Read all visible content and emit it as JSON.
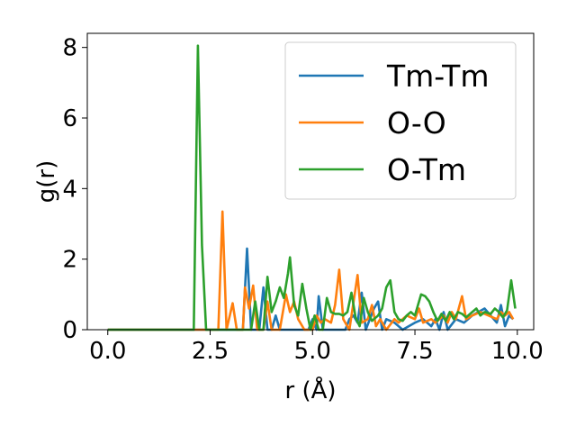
{
  "chart_data": {
    "type": "line",
    "title": "",
    "xlabel": "r (Å)",
    "ylabel": "g(r)",
    "xlim": [
      -0.5,
      10.4
    ],
    "ylim": [
      0,
      8.4
    ],
    "xticks": [
      0.0,
      2.5,
      5.0,
      7.5,
      10.0
    ],
    "xtick_labels": [
      "0.0",
      "2.5",
      "5.0",
      "7.5",
      "10.0"
    ],
    "yticks": [
      0,
      2,
      4,
      6,
      8
    ],
    "ytick_labels": [
      "0",
      "2",
      "4",
      "6",
      "8"
    ],
    "grid": false,
    "legend_position": "upper right",
    "series": [
      {
        "name": "Tm-Tm",
        "color": "#1f77b4",
        "points": [
          [
            0,
            0
          ],
          [
            3.3,
            0
          ],
          [
            3.4,
            2.3
          ],
          [
            3.5,
            0
          ],
          [
            3.7,
            0
          ],
          [
            3.8,
            1.2
          ],
          [
            3.9,
            0
          ],
          [
            4.0,
            0
          ],
          [
            4.1,
            0.4
          ],
          [
            4.2,
            0
          ],
          [
            4.9,
            0
          ],
          [
            5.0,
            0.3
          ],
          [
            5.1,
            0
          ],
          [
            5.15,
            0.95
          ],
          [
            5.25,
            0
          ],
          [
            5.8,
            0
          ],
          [
            5.9,
            0.3
          ],
          [
            6.0,
            0.4
          ],
          [
            6.1,
            0.2
          ],
          [
            6.2,
            1.05
          ],
          [
            6.3,
            0
          ],
          [
            6.5,
            0.6
          ],
          [
            6.6,
            0.8
          ],
          [
            6.7,
            0
          ],
          [
            6.8,
            0.3
          ],
          [
            7.0,
            0.2
          ],
          [
            7.2,
            0
          ],
          [
            7.5,
            0.2
          ],
          [
            7.7,
            0.3
          ],
          [
            7.9,
            0.1
          ],
          [
            8.0,
            0.3
          ],
          [
            8.1,
            0
          ],
          [
            8.2,
            0.5
          ],
          [
            8.3,
            0
          ],
          [
            8.5,
            0.3
          ],
          [
            8.7,
            0.2
          ],
          [
            8.9,
            0.4
          ],
          [
            9.2,
            0.6
          ],
          [
            9.5,
            0.2
          ],
          [
            9.6,
            0.7
          ],
          [
            9.7,
            0.1
          ],
          [
            9.8,
            0.4
          ],
          [
            9.9,
            0.3
          ]
        ]
      },
      {
        "name": "O-O",
        "color": "#ff7f0e",
        "points": [
          [
            0,
            0
          ],
          [
            2.7,
            0
          ],
          [
            2.8,
            3.35
          ],
          [
            2.9,
            0
          ],
          [
            3.05,
            0.75
          ],
          [
            3.15,
            0
          ],
          [
            3.3,
            0
          ],
          [
            3.35,
            1.2
          ],
          [
            3.45,
            0.6
          ],
          [
            3.55,
            1.25
          ],
          [
            3.65,
            0
          ],
          [
            3.8,
            0
          ],
          [
            3.9,
            0.8
          ],
          [
            4.0,
            0
          ],
          [
            4.2,
            0
          ],
          [
            4.35,
            1.0
          ],
          [
            4.45,
            0.5
          ],
          [
            4.55,
            0.8
          ],
          [
            4.65,
            0.3
          ],
          [
            4.8,
            0
          ],
          [
            5.0,
            0
          ],
          [
            5.1,
            0.4
          ],
          [
            5.2,
            0.2
          ],
          [
            5.3,
            0.3
          ],
          [
            5.45,
            0.2
          ],
          [
            5.55,
            0.7
          ],
          [
            5.65,
            1.7
          ],
          [
            5.75,
            0.3
          ],
          [
            5.9,
            0
          ],
          [
            6.1,
            1.55
          ],
          [
            6.2,
            0.2
          ],
          [
            6.35,
            0.3
          ],
          [
            6.45,
            0.7
          ],
          [
            6.55,
            0.1
          ],
          [
            6.65,
            0.3
          ],
          [
            6.8,
            0
          ],
          [
            7.0,
            0.3
          ],
          [
            7.1,
            0.2
          ],
          [
            7.3,
            0.4
          ],
          [
            7.5,
            0.3
          ],
          [
            7.6,
            0.6
          ],
          [
            7.7,
            0.2
          ],
          [
            7.9,
            0.3
          ],
          [
            8.0,
            0.2
          ],
          [
            8.2,
            0.4
          ],
          [
            8.3,
            0.2
          ],
          [
            8.4,
            0.5
          ],
          [
            8.5,
            0.3
          ],
          [
            8.65,
            0.95
          ],
          [
            8.75,
            0.3
          ],
          [
            8.9,
            0.4
          ],
          [
            9.1,
            0.5
          ],
          [
            9.3,
            0.4
          ],
          [
            9.5,
            0.3
          ],
          [
            9.6,
            0.5
          ],
          [
            9.7,
            0.4
          ],
          [
            9.8,
            0.5
          ],
          [
            9.9,
            0.3
          ]
        ]
      },
      {
        "name": "O-Tm",
        "color": "#2ca02c",
        "points": [
          [
            0,
            0
          ],
          [
            2.1,
            0
          ],
          [
            2.2,
            8.05
          ],
          [
            2.3,
            2.4
          ],
          [
            2.4,
            0
          ],
          [
            3.5,
            0
          ],
          [
            3.6,
            0.8
          ],
          [
            3.7,
            0
          ],
          [
            3.8,
            0
          ],
          [
            3.9,
            1.5
          ],
          [
            4.0,
            0.5
          ],
          [
            4.1,
            0.8
          ],
          [
            4.2,
            1.2
          ],
          [
            4.3,
            0.9
          ],
          [
            4.4,
            1.6
          ],
          [
            4.45,
            2.05
          ],
          [
            4.55,
            0.7
          ],
          [
            4.65,
            0.4
          ],
          [
            4.75,
            1.3
          ],
          [
            4.85,
            0.6
          ],
          [
            4.95,
            0
          ],
          [
            5.05,
            0.4
          ],
          [
            5.15,
            0
          ],
          [
            5.25,
            0
          ],
          [
            5.35,
            0.9
          ],
          [
            5.45,
            0.5
          ],
          [
            5.55,
            0.45
          ],
          [
            5.65,
            0.45
          ],
          [
            5.75,
            0.4
          ],
          [
            5.85,
            0.5
          ],
          [
            5.95,
            1.05
          ],
          [
            6.05,
            0.35
          ],
          [
            6.15,
            0.1
          ],
          [
            6.25,
            0.9
          ],
          [
            6.35,
            0.5
          ],
          [
            6.45,
            0.25
          ],
          [
            6.6,
            0.4
          ],
          [
            6.7,
            0.6
          ],
          [
            6.8,
            1.2
          ],
          [
            6.9,
            1.4
          ],
          [
            7.0,
            0.5
          ],
          [
            7.1,
            0.3
          ],
          [
            7.2,
            0.25
          ],
          [
            7.3,
            0.4
          ],
          [
            7.4,
            0.5
          ],
          [
            7.5,
            0.4
          ],
          [
            7.55,
            0.6
          ],
          [
            7.65,
            1.0
          ],
          [
            7.75,
            0.95
          ],
          [
            7.85,
            0.8
          ],
          [
            7.95,
            0.5
          ],
          [
            8.05,
            0.25
          ],
          [
            8.15,
            0.45
          ],
          [
            8.25,
            0.25
          ],
          [
            8.35,
            0.5
          ],
          [
            8.45,
            0.3
          ],
          [
            8.55,
            0.5
          ],
          [
            8.65,
            0.45
          ],
          [
            8.75,
            0.35
          ],
          [
            8.9,
            0.5
          ],
          [
            9.0,
            0.6
          ],
          [
            9.1,
            0.4
          ],
          [
            9.2,
            0.5
          ],
          [
            9.35,
            0.45
          ],
          [
            9.45,
            0.6
          ],
          [
            9.55,
            0.5
          ],
          [
            9.65,
            0.35
          ],
          [
            9.75,
            0.55
          ],
          [
            9.85,
            1.4
          ],
          [
            9.95,
            0.6
          ]
        ]
      }
    ]
  }
}
